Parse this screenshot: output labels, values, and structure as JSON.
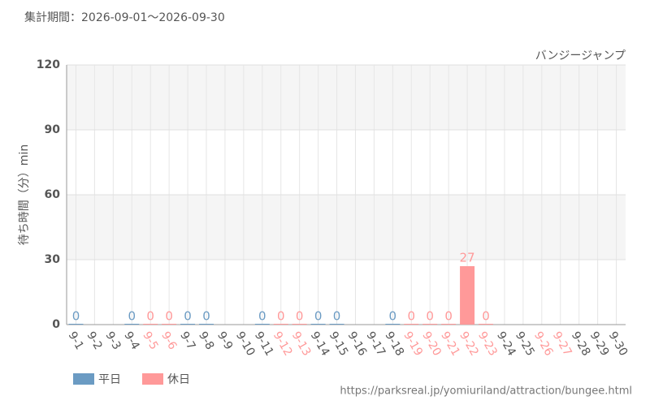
{
  "chart_data": {
    "type": "bar",
    "title": "集計期間：2026-09-01〜2026-09-30",
    "subtitle": "バンジージャンプ",
    "y_label": "待ち時間（分）min",
    "source": "https://parksreal.jp/yomiuriland/attraction/bungee.html",
    "categories": [
      "9-1",
      "9-2",
      "9-3",
      "9-4",
      "9-5",
      "9-6",
      "9-7",
      "9-8",
      "9-9",
      "9-10",
      "9-11",
      "9-12",
      "9-13",
      "9-14",
      "9-15",
      "9-16",
      "9-17",
      "9-18",
      "9-19",
      "9-20",
      "9-21",
      "9-22",
      "9-23",
      "9-24",
      "9-25",
      "9-26",
      "9-27",
      "9-28",
      "9-29",
      "9-30"
    ],
    "category_colors": [
      "#555",
      "#555",
      "#555",
      "#555",
      "#ff9999",
      "#ff9999",
      "#555",
      "#555",
      "#555",
      "#555",
      "#555",
      "#ff9999",
      "#ff9999",
      "#555",
      "#555",
      "#555",
      "#555",
      "#555",
      "#ff9999",
      "#ff9999",
      "#ff9999",
      "#ff9999",
      "#ff9999",
      "#555",
      "#555",
      "#ff9999",
      "#ff9999",
      "#555",
      "#555",
      "#555"
    ],
    "series": [
      {
        "name": "平日",
        "color": "#6b9bc3",
        "values": [
          0,
          null,
          null,
          0,
          null,
          null,
          0,
          0,
          null,
          null,
          0,
          null,
          null,
          0,
          0,
          null,
          null,
          0,
          null,
          null,
          null,
          null,
          null,
          null,
          null,
          null,
          null,
          null,
          null,
          null
        ]
      },
      {
        "name": "休日",
        "color": "#ff9999",
        "values": [
          null,
          null,
          null,
          null,
          0,
          0,
          null,
          null,
          null,
          null,
          null,
          0,
          0,
          null,
          null,
          null,
          null,
          null,
          0,
          0,
          0,
          27,
          0,
          null,
          null,
          null,
          null,
          null,
          null,
          null
        ]
      }
    ],
    "ylim": [
      0,
      120
    ],
    "yticks": [
      0,
      30,
      60,
      90,
      120
    ],
    "grid": true
  }
}
